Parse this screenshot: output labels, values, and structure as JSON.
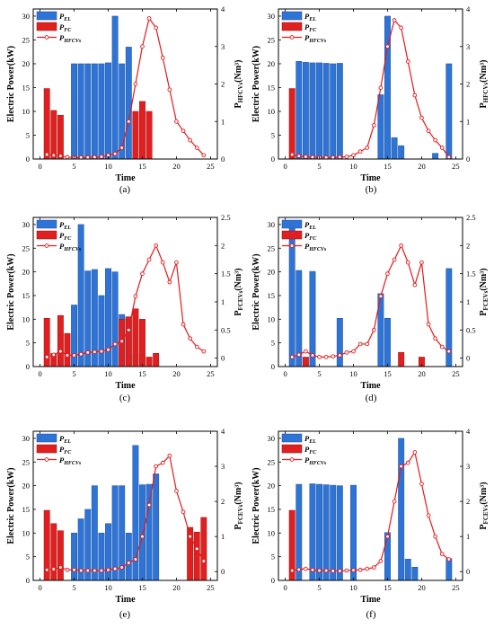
{
  "figure": {
    "colors": {
      "el_fill": "#2e74d6",
      "el_stroke": "#1e4f99",
      "fc_fill": "#e02020",
      "fc_stroke": "#9b1212",
      "hfcv_line": "#e31a1c",
      "axis": "#000000"
    }
  },
  "chart_data": [
    {
      "panel": "a",
      "type": "bar",
      "caption": "(a)",
      "xlabel": "Time",
      "ylabel": "Electric Power(kW)",
      "y2label_base": "P",
      "y2label_sub": "HFCVs",
      "y2label_unit": "(Nm³)",
      "xlim": [
        -1,
        26
      ],
      "ylim": [
        0,
        31.5
      ],
      "y2lim": [
        0,
        4
      ],
      "xticks": [
        0,
        5,
        10,
        15,
        20,
        25
      ],
      "yticks": [
        0,
        5,
        10,
        15,
        20,
        25,
        30
      ],
      "y2ticks": [
        0,
        1,
        2,
        3,
        4
      ],
      "legend": {
        "position": "top-left",
        "labels": [
          {
            "base": "P",
            "sub": "EL"
          },
          {
            "base": "P",
            "sub": "FC"
          },
          {
            "base": "P",
            "sub": "HFCVs"
          }
        ]
      },
      "series": [
        {
          "name": "P_EL",
          "kind": "bar",
          "x": [
            5,
            6,
            7,
            8,
            9,
            10,
            11,
            12,
            13
          ],
          "values": [
            20,
            20,
            20,
            20,
            20,
            20.2,
            30,
            20,
            23.5
          ]
        },
        {
          "name": "P_FC",
          "kind": "bar",
          "x": [
            1,
            2,
            3,
            14,
            15,
            16
          ],
          "values": [
            14.8,
            10.2,
            9.2,
            10,
            12.1,
            10
          ]
        },
        {
          "name": "P_HFCVs",
          "kind": "line",
          "axis": "right",
          "x": [
            1,
            2,
            3,
            4,
            5,
            6,
            7,
            8,
            9,
            10,
            11,
            12,
            13,
            14,
            15,
            16,
            17,
            18,
            19,
            20,
            21,
            22,
            23,
            24
          ],
          "values": [
            0.12,
            0.1,
            0.08,
            0.05,
            0.04,
            0.04,
            0.04,
            0.05,
            0.06,
            0.1,
            0.14,
            0.3,
            1.0,
            2.0,
            3.0,
            3.75,
            3.5,
            2.7,
            1.85,
            1.0,
            0.75,
            0.5,
            0.3,
            0.1
          ]
        }
      ]
    },
    {
      "panel": "b",
      "type": "bar",
      "caption": "(b)",
      "xlabel": "Time",
      "ylabel": "Electric Power(kW)",
      "y2label_base": "P",
      "y2label_sub": "HFCVs",
      "y2label_unit": "(Nm³)",
      "xlim": [
        -1,
        26
      ],
      "ylim": [
        0,
        31.5
      ],
      "y2lim": [
        0,
        4
      ],
      "xticks": [
        0,
        5,
        10,
        15,
        20,
        25
      ],
      "yticks": [
        0,
        5,
        10,
        15,
        20,
        25,
        30
      ],
      "y2ticks": [
        0,
        1,
        2,
        3,
        4
      ],
      "legend": {
        "position": "top-left",
        "labels": [
          {
            "base": "P",
            "sub": "EL"
          },
          {
            "base": "P",
            "sub": "FC"
          },
          {
            "base": "P",
            "sub": "HFCVs"
          }
        ]
      },
      "series": [
        {
          "name": "P_EL",
          "kind": "bar",
          "x": [
            2,
            3,
            4,
            5,
            6,
            7,
            8,
            14,
            15,
            16,
            17,
            22,
            24
          ],
          "values": [
            20.5,
            20.3,
            20.2,
            20.2,
            20.1,
            20,
            20.1,
            13.5,
            30,
            4.5,
            2.8,
            1.2,
            20
          ]
        },
        {
          "name": "P_FC",
          "kind": "bar",
          "x": [
            1
          ],
          "values": [
            14.8
          ]
        },
        {
          "name": "P_HFCVs",
          "kind": "line",
          "axis": "right",
          "x": [
            1,
            2,
            3,
            4,
            5,
            6,
            7,
            8,
            9,
            10,
            11,
            12,
            13,
            14,
            15,
            16,
            17,
            18,
            19,
            20,
            21,
            22,
            23,
            24
          ],
          "values": [
            0.12,
            0.08,
            0.06,
            0.05,
            0.04,
            0.04,
            0.04,
            0.05,
            0.06,
            0.1,
            0.2,
            0.3,
            0.9,
            1.9,
            3.0,
            3.7,
            3.5,
            2.6,
            1.7,
            1.1,
            0.75,
            0.5,
            0.3,
            0.05
          ]
        }
      ]
    },
    {
      "panel": "c",
      "type": "bar",
      "caption": "(c)",
      "xlabel": "Time",
      "ylabel": "Electric Power(kW)",
      "y2label_base": "P",
      "y2label_sub": "FCEVs",
      "y2label_unit": "(Nm³)",
      "xlim": [
        -1,
        26
      ],
      "ylim": [
        0,
        31.5
      ],
      "y2lim": [
        -0.15,
        2.5
      ],
      "xticks": [
        0,
        5,
        10,
        15,
        20,
        25
      ],
      "yticks": [
        0,
        5,
        10,
        15,
        20,
        25,
        30
      ],
      "y2ticks": [
        0.0,
        0.5,
        1.0,
        1.5,
        2.0,
        2.5
      ],
      "legend": {
        "position": "top-left",
        "labels": [
          {
            "base": "P",
            "sub": "EL"
          },
          {
            "base": "P",
            "sub": "FC"
          },
          {
            "base": "P",
            "sub": "HFCVs"
          }
        ]
      },
      "series": [
        {
          "name": "P_EL",
          "kind": "bar",
          "x": [
            5,
            6,
            7,
            8,
            9,
            10,
            11,
            12,
            13,
            14
          ],
          "values": [
            13,
            30,
            20.2,
            20.5,
            15,
            20.7,
            20,
            11,
            10.5,
            2.8
          ]
        },
        {
          "name": "P_FC",
          "kind": "bar",
          "x": [
            1,
            2,
            3,
            4,
            12,
            13,
            14,
            15,
            16,
            17
          ],
          "values": [
            10.2,
            2.8,
            10.8,
            7,
            10,
            10.5,
            12.2,
            10,
            2,
            2.8
          ]
        },
        {
          "name": "P_HFCVs",
          "kind": "line",
          "axis": "right",
          "x": [
            1,
            2,
            3,
            4,
            5,
            6,
            7,
            8,
            9,
            10,
            11,
            12,
            13,
            14,
            15,
            16,
            17,
            18,
            19,
            20,
            21,
            22,
            23,
            24
          ],
          "values": [
            0.02,
            0.06,
            0.12,
            0.05,
            0.05,
            0.07,
            0.1,
            0.11,
            0.12,
            0.15,
            0.25,
            0.3,
            0.5,
            1.1,
            1.5,
            1.75,
            2.0,
            1.7,
            1.35,
            1.7,
            0.6,
            0.35,
            0.2,
            0.12
          ]
        }
      ]
    },
    {
      "panel": "d",
      "type": "bar",
      "caption": "(d)",
      "xlabel": "Time",
      "ylabel": "Electric Power(kW)",
      "y2label_base": "P",
      "y2label_sub": "FCEVs",
      "y2label_unit": "(Nm³)",
      "xlim": [
        -1,
        26
      ],
      "ylim": [
        0,
        31.5
      ],
      "y2lim": [
        -0.15,
        2.5
      ],
      "xticks": [
        0,
        5,
        10,
        15,
        20,
        25
      ],
      "yticks": [
        0,
        5,
        10,
        15,
        20,
        25,
        30
      ],
      "y2ticks": [
        0.0,
        0.5,
        1.0,
        1.5,
        2.0,
        2.5
      ],
      "legend": {
        "position": "top-left",
        "labels": [
          {
            "base": "P",
            "sub": "EL"
          },
          {
            "base": "P",
            "sub": "FC"
          },
          {
            "base": "P",
            "sub": "HFCVs"
          }
        ]
      },
      "series": [
        {
          "name": "P_EL",
          "kind": "bar",
          "x": [
            1,
            2,
            4,
            8,
            14,
            15,
            24
          ],
          "values": [
            30,
            20.3,
            20.1,
            10.2,
            15.4,
            10.2,
            20.7
          ]
        },
        {
          "name": "P_FC",
          "kind": "bar",
          "x": [
            3,
            17,
            20
          ],
          "values": [
            2,
            3,
            2
          ]
        },
        {
          "name": "P_HFCVs",
          "kind": "line",
          "axis": "right",
          "x": [
            1,
            2,
            3,
            4,
            5,
            6,
            7,
            8,
            9,
            10,
            11,
            12,
            13,
            14,
            15,
            16,
            17,
            18,
            19,
            20,
            21,
            22,
            23,
            24
          ],
          "values": [
            0.02,
            0.06,
            0.12,
            0.05,
            0.02,
            0.02,
            0.03,
            0.05,
            0.1,
            0.12,
            0.25,
            0.25,
            0.5,
            1.1,
            1.5,
            1.75,
            2.0,
            1.7,
            1.3,
            1.7,
            0.6,
            0.35,
            0.2,
            0.12
          ]
        }
      ]
    },
    {
      "panel": "e",
      "type": "bar",
      "caption": "(e)",
      "xlabel": "Time",
      "ylabel": "Electric Power(kW)",
      "y2label_base": "P",
      "y2label_sub": "FCEVs",
      "y2label_unit": "(Nm³)",
      "xlim": [
        -1,
        26
      ],
      "ylim": [
        0,
        31.5
      ],
      "y2lim": [
        -0.25,
        4
      ],
      "xticks": [
        0,
        5,
        10,
        15,
        20,
        25
      ],
      "yticks": [
        0,
        5,
        10,
        15,
        20,
        25,
        30
      ],
      "y2ticks": [
        0,
        1,
        2,
        3,
        4
      ],
      "legend": {
        "position": "top-left",
        "labels": [
          {
            "base": "P",
            "sub": "EL"
          },
          {
            "base": "P",
            "sub": "FC"
          },
          {
            "base": "P",
            "sub": "HFCVs"
          }
        ]
      },
      "series": [
        {
          "name": "P_EL",
          "kind": "bar",
          "x": [
            5,
            6,
            7,
            8,
            9,
            10,
            11,
            12,
            13,
            14,
            15,
            16,
            17
          ],
          "values": [
            10,
            13,
            15,
            20,
            10,
            12,
            20,
            20,
            10,
            28.5,
            20.2,
            20.3,
            22.5
          ]
        },
        {
          "name": "P_FC",
          "kind": "bar",
          "x": [
            1,
            2,
            3,
            22,
            23,
            24
          ],
          "values": [
            14.8,
            12,
            10.5,
            11.2,
            10.2,
            13.3
          ]
        },
        {
          "name": "P_HFCVs",
          "kind": "line",
          "axis": "right",
          "x": [
            1,
            2,
            3,
            4,
            5,
            6,
            7,
            8,
            9,
            10,
            11,
            12,
            13,
            14,
            15,
            16,
            17,
            18,
            19,
            20,
            21,
            22,
            23,
            24
          ],
          "values": [
            0.05,
            0.07,
            0.12,
            0.05,
            0.05,
            0.03,
            0.03,
            0.03,
            0.03,
            0.05,
            0.08,
            0.12,
            0.25,
            0.35,
            1.0,
            1.9,
            3.0,
            3.1,
            3.3,
            2.3,
            1.7,
            1.0,
            0.65,
            0.3
          ]
        }
      ]
    },
    {
      "panel": "f",
      "type": "bar",
      "caption": "(f)",
      "xlabel": "Time",
      "ylabel": "Electric Power(kW)",
      "y2label_base": "P",
      "y2label_sub": "FCEVs",
      "y2label_unit": "(Nm³)",
      "xlim": [
        -1,
        26
      ],
      "ylim": [
        0,
        31.5
      ],
      "y2lim": [
        -0.25,
        4
      ],
      "xticks": [
        0,
        5,
        10,
        15,
        20,
        25
      ],
      "yticks": [
        0,
        5,
        10,
        15,
        20,
        25,
        30
      ],
      "y2ticks": [
        0,
        1,
        2,
        3,
        4
      ],
      "legend": {
        "position": "top-left",
        "labels": [
          {
            "base": "P",
            "sub": "EL"
          },
          {
            "base": "P",
            "sub": "FC"
          },
          {
            "base": "P",
            "sub": "HFCVs"
          }
        ]
      },
      "series": [
        {
          "name": "P_EL",
          "kind": "bar",
          "x": [
            2,
            4,
            5,
            6,
            7,
            8,
            10,
            15,
            17,
            18,
            19,
            24
          ],
          "values": [
            20.3,
            20.4,
            20.3,
            20.2,
            20.1,
            20,
            20.1,
            10.1,
            30,
            4.5,
            2.8,
            4.6
          ]
        },
        {
          "name": "P_FC",
          "kind": "bar",
          "x": [
            1
          ],
          "values": [
            14.8
          ]
        },
        {
          "name": "P_HFCVs",
          "kind": "line",
          "axis": "right",
          "x": [
            1,
            2,
            3,
            4,
            5,
            6,
            7,
            8,
            9,
            10,
            11,
            12,
            13,
            14,
            15,
            16,
            17,
            18,
            19,
            20,
            21,
            22,
            23,
            24
          ],
          "values": [
            0.03,
            0.06,
            0.08,
            0.05,
            0.03,
            0.03,
            0.02,
            0.02,
            0.03,
            0.04,
            0.05,
            0.08,
            0.12,
            0.3,
            1.0,
            2.0,
            3.0,
            3.1,
            3.4,
            2.5,
            1.6,
            1.0,
            0.5,
            0.35
          ]
        }
      ]
    }
  ]
}
